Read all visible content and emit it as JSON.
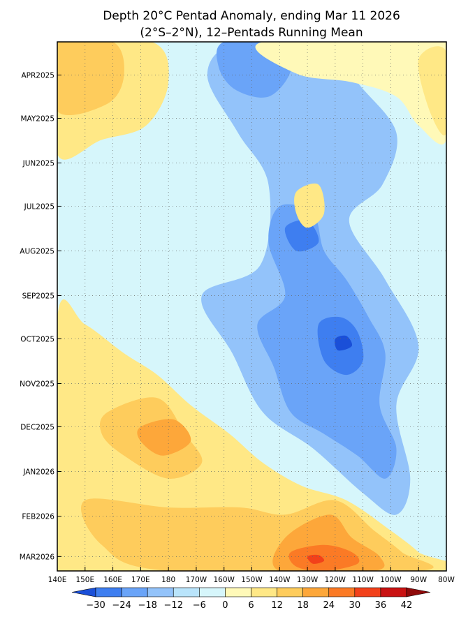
{
  "chart_data": {
    "type": "heatmap",
    "title": "Depth 20°C Pentad Anomaly, ending Mar 11 2026",
    "subtitle": "(2°S–2°N), 12–Pentads Running Mean",
    "x_ticks": [
      "140E",
      "150E",
      "160E",
      "170E",
      "180",
      "170W",
      "160W",
      "150W",
      "140W",
      "130W",
      "120W",
      "110W",
      "100W",
      "90W",
      "80W"
    ],
    "x_tick_values": [
      140,
      150,
      160,
      170,
      180,
      190,
      200,
      210,
      220,
      230,
      240,
      250,
      260,
      270,
      280
    ],
    "xlim": [
      140,
      280
    ],
    "y_ticks": [
      "APR2025",
      "MAY2025",
      "JUN2025",
      "JUL2025",
      "AUG2025",
      "SEP2025",
      "OCT2025",
      "NOV2025",
      "DEC2025",
      "JAN2026",
      "FEB2026",
      "MAR2026"
    ],
    "y_tick_values": [
      "2025-04-01",
      "2025-05-01",
      "2025-06-01",
      "2025-07-01",
      "2025-08-01",
      "2025-09-01",
      "2025-10-01",
      "2025-11-01",
      "2025-12-01",
      "2026-01-01",
      "2026-02-01",
      "2026-03-01"
    ],
    "ylim": [
      "2025-03-09",
      "2026-03-11"
    ],
    "grid": "dotted",
    "colorbar": {
      "ticks": [
        "−30",
        "−24",
        "−18",
        "−12",
        "−6",
        "0",
        "6",
        "12",
        "18",
        "24",
        "30",
        "36",
        "42"
      ],
      "levels": [
        -30,
        -24,
        -18,
        -12,
        -6,
        0,
        6,
        12,
        18,
        24,
        30,
        36,
        42
      ],
      "colors": [
        "#1a4fd8",
        "#3e7ef0",
        "#6aa4f8",
        "#93c3fa",
        "#b9e4fb",
        "#d6f6fb",
        "#fff9b8",
        "#ffe886",
        "#fecc5c",
        "#fda73a",
        "#fb7a25",
        "#f2411a",
        "#c91212",
        "#8f0a0a"
      ]
    },
    "contours": [
      {
        "level": -6,
        "color": "#93c3fa",
        "stack": 1,
        "outline": [
          [
            205,
            "2025-03-09"
          ],
          [
            238,
            "2025-03-09"
          ],
          [
            248,
            "2025-04-06"
          ],
          [
            262,
            "2025-05-11"
          ],
          [
            257,
            "2025-06-16"
          ],
          [
            245,
            "2025-07-11"
          ],
          [
            258,
            "2025-08-21"
          ],
          [
            270,
            "2025-10-06"
          ],
          [
            262,
            "2025-11-16"
          ],
          [
            267,
            "2026-01-06"
          ],
          [
            262,
            "2026-01-31"
          ],
          [
            250,
            "2026-01-16"
          ],
          [
            232,
            "2025-12-16"
          ],
          [
            214,
            "2025-11-21"
          ],
          [
            203,
            "2025-10-11"
          ],
          [
            192,
            "2025-09-01"
          ],
          [
            213,
            "2025-08-11"
          ],
          [
            216,
            "2025-06-16"
          ],
          [
            205,
            "2025-05-11"
          ],
          [
            194,
            "2025-04-01"
          ]
        ]
      },
      {
        "level": -12,
        "color": "#6aa4f8",
        "stack": 2,
        "outline": [
          [
            220,
            "2025-07-01"
          ],
          [
            232,
            "2025-07-06"
          ],
          [
            236,
            "2025-08-01"
          ],
          [
            244,
            "2025-08-21"
          ],
          [
            252,
            "2025-09-16"
          ],
          [
            258,
            "2025-10-11"
          ],
          [
            256,
            "2025-11-16"
          ],
          [
            262,
            "2025-12-16"
          ],
          [
            258,
            "2026-01-06"
          ],
          [
            248,
            "2025-12-21"
          ],
          [
            236,
            "2025-12-06"
          ],
          [
            224,
            "2025-11-21"
          ],
          [
            218,
            "2025-10-21"
          ],
          [
            212,
            "2025-09-21"
          ],
          [
            222,
            "2025-09-01"
          ],
          [
            216,
            "2025-07-26"
          ]
        ]
      },
      {
        "level": -12,
        "color": "#6aa4f8",
        "stack": 3,
        "outline": [
          [
            200,
            "2025-03-09"
          ],
          [
            221,
            "2025-03-09"
          ],
          [
            224,
            "2025-03-29"
          ],
          [
            216,
            "2025-04-16"
          ],
          [
            204,
            "2025-04-11"
          ],
          [
            198,
            "2025-03-26"
          ]
        ]
      },
      {
        "level": -18,
        "color": "#3e7ef0",
        "stack": 4,
        "outline": [
          [
            234,
            "2025-09-21"
          ],
          [
            242,
            "2025-09-16"
          ],
          [
            248,
            "2025-09-26"
          ],
          [
            250,
            "2025-10-16"
          ],
          [
            244,
            "2025-10-26"
          ],
          [
            236,
            "2025-10-16"
          ]
        ]
      },
      {
        "level": -18,
        "color": "#3e7ef0",
        "stack": 5,
        "outline": [
          [
            222,
            "2025-07-16"
          ],
          [
            230,
            "2025-07-11"
          ],
          [
            234,
            "2025-07-26"
          ],
          [
            226,
            "2025-08-01"
          ]
        ]
      },
      {
        "level": -24,
        "color": "#1a4fd8",
        "stack": 6,
        "outline": [
          [
            240,
            "2025-10-01"
          ],
          [
            244,
            "2025-09-29"
          ],
          [
            246,
            "2025-10-06"
          ],
          [
            241,
            "2025-10-09"
          ]
        ]
      },
      {
        "level": 12,
        "color": "#ffe886",
        "stack": 7,
        "outline": [
          [
            140,
            "2025-03-09"
          ],
          [
            174,
            "2025-03-09"
          ],
          [
            180,
            "2025-04-06"
          ],
          [
            172,
            "2025-05-06"
          ],
          [
            156,
            "2025-05-16"
          ],
          [
            140,
            "2025-05-26"
          ]
        ]
      },
      {
        "level": 18,
        "color": "#fecc5c",
        "stack": 8,
        "outline": [
          [
            140,
            "2025-03-09"
          ],
          [
            160,
            "2025-03-09"
          ],
          [
            164,
            "2025-04-01"
          ],
          [
            158,
            "2025-04-21"
          ],
          [
            140,
            "2025-04-26"
          ]
        ]
      },
      {
        "level": 12,
        "color": "#ffe886",
        "stack": 9,
        "outline": [
          [
            140,
            "2025-09-16"
          ],
          [
            150,
            "2025-09-21"
          ],
          [
            164,
            "2025-10-11"
          ],
          [
            176,
            "2025-10-26"
          ],
          [
            188,
            "2025-11-16"
          ],
          [
            202,
            "2025-12-06"
          ],
          [
            214,
            "2025-12-26"
          ],
          [
            228,
            "2026-01-11"
          ],
          [
            244,
            "2026-01-21"
          ],
          [
            260,
            "2026-02-11"
          ],
          [
            270,
            "2026-02-26"
          ],
          [
            276,
            "2026-03-11"
          ],
          [
            140,
            "2026-03-11"
          ]
        ]
      },
      {
        "level": 18,
        "color": "#fecc5c",
        "stack": 10,
        "outline": [
          [
            158,
            "2025-11-21"
          ],
          [
            176,
            "2025-11-11"
          ],
          [
            186,
            "2025-12-06"
          ],
          [
            192,
            "2025-12-26"
          ],
          [
            180,
            "2026-01-06"
          ],
          [
            164,
            "2025-12-21"
          ],
          [
            156,
            "2025-12-06"
          ]
        ]
      },
      {
        "level": 18,
        "color": "#fecc5c",
        "stack": 11,
        "outline": [
          [
            150,
            "2026-01-21"
          ],
          [
            180,
            "2026-01-26"
          ],
          [
            206,
            "2026-01-26"
          ],
          [
            222,
            "2026-01-31"
          ],
          [
            240,
            "2026-01-21"
          ],
          [
            254,
            "2026-02-11"
          ],
          [
            264,
            "2026-02-26"
          ],
          [
            270,
            "2026-03-11"
          ],
          [
            180,
            "2026-03-11"
          ],
          [
            156,
            "2026-02-21"
          ]
        ]
      },
      {
        "level": 24,
        "color": "#fda73a",
        "stack": 12,
        "outline": [
          [
            222,
            "2026-02-16"
          ],
          [
            238,
            "2026-01-31"
          ],
          [
            246,
            "2026-02-16"
          ],
          [
            256,
            "2026-03-01"
          ],
          [
            254,
            "2026-03-11"
          ],
          [
            220,
            "2026-03-11"
          ]
        ]
      },
      {
        "level": 24,
        "color": "#fda73a",
        "stack": 13,
        "outline": [
          [
            170,
            "2025-12-01"
          ],
          [
            182,
            "2025-11-26"
          ],
          [
            188,
            "2025-12-11"
          ],
          [
            178,
            "2025-12-21"
          ],
          [
            170,
            "2025-12-11"
          ]
        ]
      },
      {
        "level": 30,
        "color": "#fb7a25",
        "stack": 14,
        "outline": [
          [
            224,
            "2026-02-26"
          ],
          [
            236,
            "2026-02-21"
          ],
          [
            246,
            "2026-02-26"
          ],
          [
            248,
            "2026-03-06"
          ],
          [
            236,
            "2026-03-11"
          ],
          [
            226,
            "2026-03-08"
          ]
        ]
      },
      {
        "level": 36,
        "color": "#f2411a",
        "stack": 15,
        "outline": [
          [
            230,
            "2026-03-01"
          ],
          [
            234,
            "2026-02-28"
          ],
          [
            236,
            "2026-03-04"
          ],
          [
            232,
            "2026-03-06"
          ]
        ]
      },
      {
        "level": 12,
        "color": "#ffe886",
        "stack": 16,
        "outline": [
          [
            226,
            "2025-06-21"
          ],
          [
            234,
            "2025-06-16"
          ],
          [
            236,
            "2025-07-06"
          ],
          [
            230,
            "2025-07-16"
          ],
          [
            226,
            "2025-07-06"
          ]
        ]
      },
      {
        "level": 6,
        "color": "#fff9b8",
        "stack": 17,
        "outline": [
          [
            214,
            "2025-03-09"
          ],
          [
            280,
            "2025-03-09"
          ],
          [
            280,
            "2025-05-16"
          ],
          [
            270,
            "2025-05-06"
          ],
          [
            262,
            "2025-04-16"
          ],
          [
            246,
            "2025-04-06"
          ],
          [
            226,
            "2025-03-31"
          ]
        ]
      },
      {
        "level": 12,
        "color": "#ffe886",
        "stack": 18,
        "outline": [
          [
            270,
            "2025-03-21"
          ],
          [
            280,
            "2025-03-16"
          ],
          [
            280,
            "2025-05-11"
          ],
          [
            274,
            "2025-04-26"
          ]
        ]
      }
    ]
  }
}
